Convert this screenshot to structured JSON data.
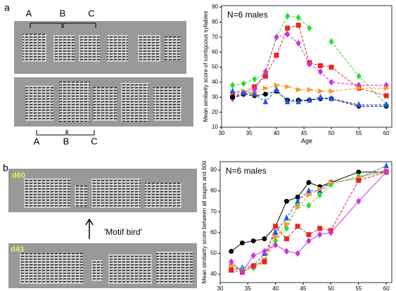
{
  "figure": {
    "panels": [
      "a",
      "b"
    ],
    "syllables_top": [
      "A",
      "B",
      "C"
    ],
    "syllables_bottom": [
      "A",
      "B",
      "C"
    ],
    "spectrogram_labels": [
      "d60",
      "d43"
    ],
    "annotation": "'Motif bird'"
  },
  "chart_data": [
    {
      "type": "line",
      "annotation": "N=6 males",
      "xlabel": "Age",
      "ylabel": "Mean similarity score of contiguous syllables",
      "xlim": [
        30,
        61
      ],
      "xticks": [
        30,
        35,
        40,
        45,
        50,
        55,
        60
      ],
      "ylim": [
        10,
        91
      ],
      "yticks": [
        10,
        20,
        30,
        40,
        50,
        60,
        70,
        80,
        90
      ],
      "x": [
        32,
        34,
        36,
        38,
        40,
        42,
        44,
        46,
        48,
        50,
        55,
        60
      ],
      "series": [
        {
          "color": "#33dd33",
          "marker": "diamond",
          "dashed": true,
          "values": [
            38,
            39,
            42,
            46,
            70,
            84,
            83,
            76,
            null,
            67,
            44,
            25
          ]
        },
        {
          "color": "#ee2222",
          "marker": "square",
          "dashed": true,
          "values": [
            31,
            33,
            37,
            44,
            58,
            76,
            78,
            53,
            51,
            50,
            36,
            31
          ]
        },
        {
          "color": "#cc33dd",
          "marker": "diamond",
          "dashed": true,
          "values": [
            29,
            32,
            35,
            47,
            70,
            72,
            66,
            52,
            47,
            40,
            38,
            38
          ]
        },
        {
          "color": "#ff9922",
          "marker": "triangle-right",
          "dashed": true,
          "values": [
            33,
            34,
            33,
            36,
            38,
            37,
            35,
            35,
            34,
            34,
            36,
            36
          ]
        },
        {
          "color": "#000000",
          "marker": "circle",
          "dashed": true,
          "values": [
            30,
            32,
            31,
            32,
            34,
            28,
            28,
            28,
            29,
            29,
            24,
            24
          ]
        },
        {
          "color": "#2255ee",
          "marker": "triangle-up",
          "dashed": true,
          "values": [
            34,
            33,
            32,
            27,
            35,
            27,
            27,
            28,
            30,
            29,
            25,
            25
          ]
        }
      ]
    },
    {
      "type": "line",
      "annotation": "N=6 males",
      "xlabel": "Age",
      "ylabel": "Mean similarity score between all stages and 60d",
      "xlim": [
        30,
        61
      ],
      "xticks": [
        30,
        35,
        40,
        45,
        50,
        55,
        60
      ],
      "ylim": [
        36,
        94
      ],
      "yticks": [
        40,
        50,
        60,
        70,
        80,
        90
      ],
      "x": [
        32,
        34,
        36,
        38,
        40,
        42,
        44,
        46,
        48,
        50,
        55,
        60
      ],
      "series": [
        {
          "color": "#000000",
          "marker": "circle",
          "dashed": false,
          "values": [
            51,
            55,
            56,
            57,
            63,
            75,
            77,
            84,
            82,
            84,
            89,
            89
          ]
        },
        {
          "color": "#2255ee",
          "marker": "triangle-up",
          "dashed": true,
          "values": [
            42,
            43,
            44,
            50,
            60,
            67,
            75,
            80,
            80,
            84,
            86,
            92
          ]
        },
        {
          "color": "#33dd33",
          "marker": "diamond",
          "dashed": true,
          "values": [
            44,
            42,
            43,
            46,
            56,
            62,
            73,
            73,
            78,
            83,
            87,
            89
          ]
        },
        {
          "color": "#ff9922",
          "marker": "triangle-right",
          "dashed": true,
          "values": [
            44,
            41,
            44,
            47,
            58,
            64,
            72,
            78,
            81,
            84,
            86,
            90
          ]
        },
        {
          "color": "#ee2222",
          "marker": "square",
          "dashed": true,
          "values": [
            42,
            41,
            44,
            46,
            63,
            57,
            63,
            59,
            62,
            61,
            85,
            89
          ]
        },
        {
          "color": "#cc33dd",
          "marker": "diamond",
          "dashed": false,
          "values": [
            46,
            41,
            49,
            51,
            54,
            51,
            50,
            56,
            59,
            60,
            75,
            89
          ]
        }
      ]
    }
  ]
}
